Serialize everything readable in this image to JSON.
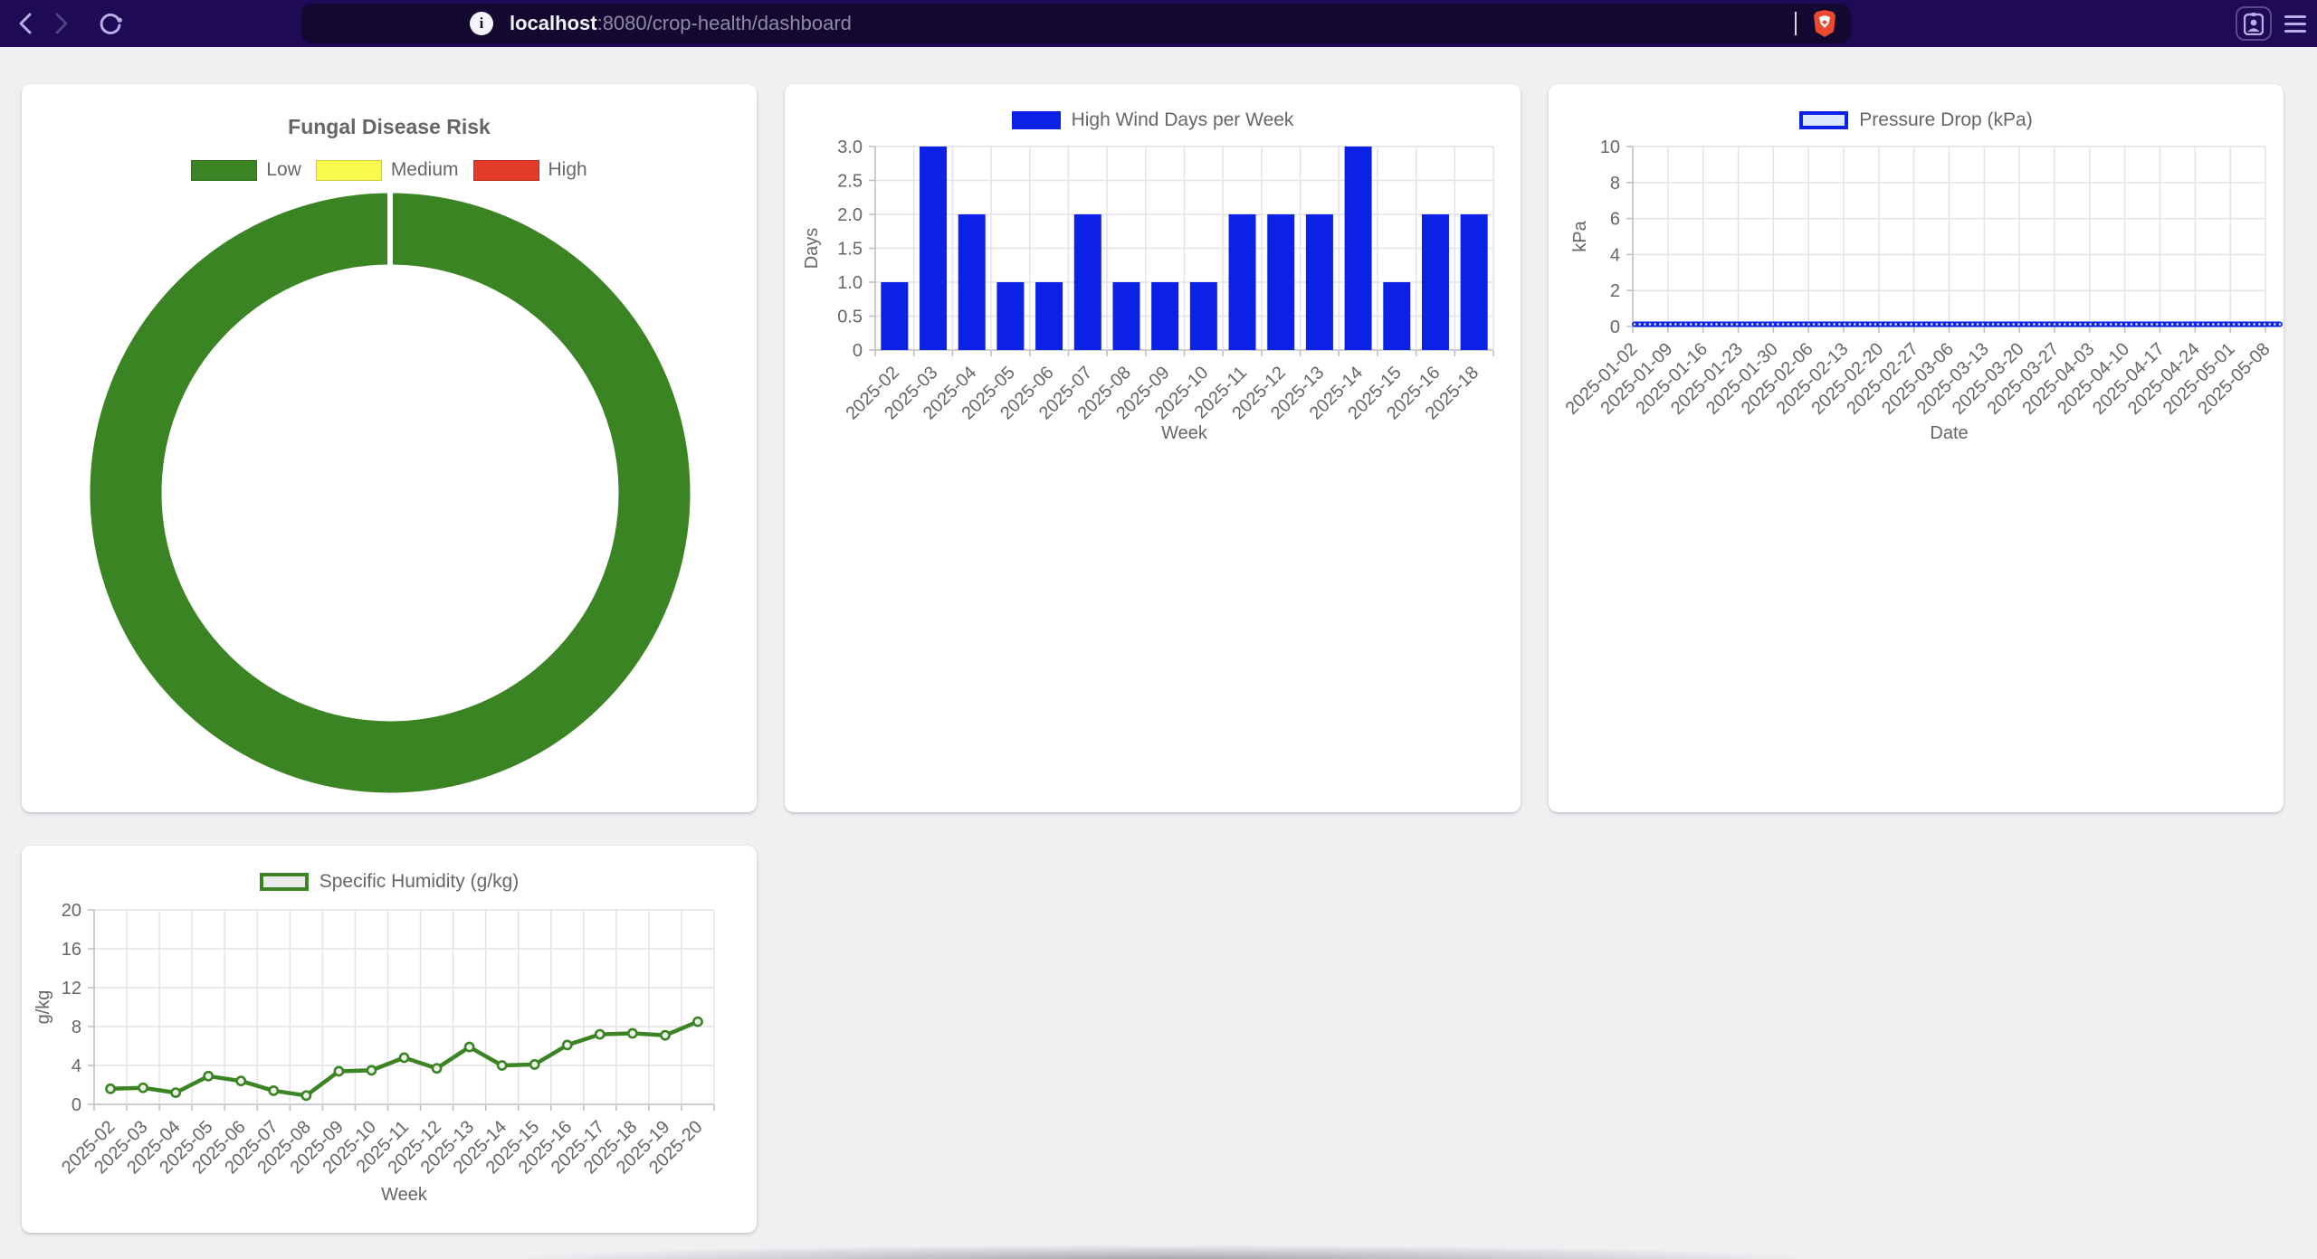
{
  "browser": {
    "url_host": "localhost",
    "url_rest": ":8080/crop-health/dashboard",
    "info_glyph": "i"
  },
  "colors": {
    "blue": "#0b22e6",
    "green": "#3a8424",
    "yellow": "#f9f94e",
    "red": "#e23b28",
    "grid": "#e4e4e8",
    "axis": "#bdbdc4",
    "text": "#666666",
    "pressure_fill": "#dde7fb",
    "pressure_dot": "#c7d6f7",
    "humidity_fill": "#ebebeb",
    "humidity_dot": "#eef2ea"
  },
  "chart_data": [
    {
      "type": "pie",
      "variant": "donut",
      "title": "Fungal Disease Risk",
      "legend": [
        {
          "label": "Low",
          "color": "#3a8424"
        },
        {
          "label": "Medium",
          "color": "#f9f94e"
        },
        {
          "label": "High",
          "color": "#e23b28"
        }
      ],
      "slices": [
        {
          "label": "Low",
          "value": 100,
          "color": "#3a8424"
        }
      ],
      "legend_position": "top"
    },
    {
      "type": "bar",
      "legend_label": "High Wind Days per Week",
      "categories": [
        "2025-02",
        "2025-03",
        "2025-04",
        "2025-05",
        "2025-06",
        "2025-07",
        "2025-08",
        "2025-09",
        "2025-10",
        "2025-11",
        "2025-12",
        "2025-13",
        "2025-14",
        "2025-15",
        "2025-16",
        "2025-18"
      ],
      "values": [
        1,
        3,
        2,
        1,
        1,
        2,
        1,
        1,
        1,
        2,
        2,
        2,
        3,
        1,
        2,
        2
      ],
      "xlabel": "Week",
      "ylabel": "Days",
      "ylim": [
        0,
        3
      ],
      "ytick_labels": [
        "0",
        "0.5",
        "1.0",
        "1.5",
        "2.0",
        "2.5",
        "3.0"
      ],
      "grid": true,
      "legend_position": "top",
      "color": "#0b22e6"
    },
    {
      "type": "line",
      "legend_label": "Pressure Drop (kPa)",
      "x_tick_labels": [
        "2025-01-02",
        "2025-01-09",
        "2025-01-16",
        "2025-01-23",
        "2025-01-30",
        "2025-02-06",
        "2025-02-13",
        "2025-02-20",
        "2025-02-27",
        "2025-03-06",
        "2025-03-13",
        "2025-03-20",
        "2025-03-27",
        "2025-04-03",
        "2025-04-10",
        "2025-04-17",
        "2025-04-24",
        "2025-05-01",
        "2025-05-08"
      ],
      "x_frequency": "daily",
      "num_points": 127,
      "constant_value": 0,
      "xlabel": "Date",
      "ylabel": "kPa",
      "ylim": [
        0,
        10
      ],
      "ytick_labels": [
        "0",
        "2",
        "4",
        "6",
        "8",
        "10"
      ],
      "grid": true,
      "legend_position": "top",
      "color": "#0b22e6"
    },
    {
      "type": "line",
      "legend_label": "Specific Humidity (g/kg)",
      "categories": [
        "2025-02",
        "2025-03",
        "2025-04",
        "2025-05",
        "2025-06",
        "2025-07",
        "2025-08",
        "2025-09",
        "2025-10",
        "2025-11",
        "2025-12",
        "2025-13",
        "2025-14",
        "2025-15",
        "2025-16",
        "2025-17",
        "2025-18",
        "2025-19",
        "2025-20"
      ],
      "values": [
        1.6,
        1.7,
        1.2,
        2.9,
        2.4,
        1.4,
        0.9,
        3.4,
        3.5,
        4.8,
        3.7,
        5.9,
        4.0,
        4.1,
        6.1,
        7.2,
        7.3,
        7.1,
        8.5
      ],
      "xlabel": "Week",
      "ylabel": "g/kg",
      "ylim": [
        0,
        20
      ],
      "ytick_labels": [
        "0",
        "4",
        "8",
        "12",
        "16",
        "20"
      ],
      "grid": true,
      "legend_position": "top",
      "color": "#3a8424"
    }
  ]
}
